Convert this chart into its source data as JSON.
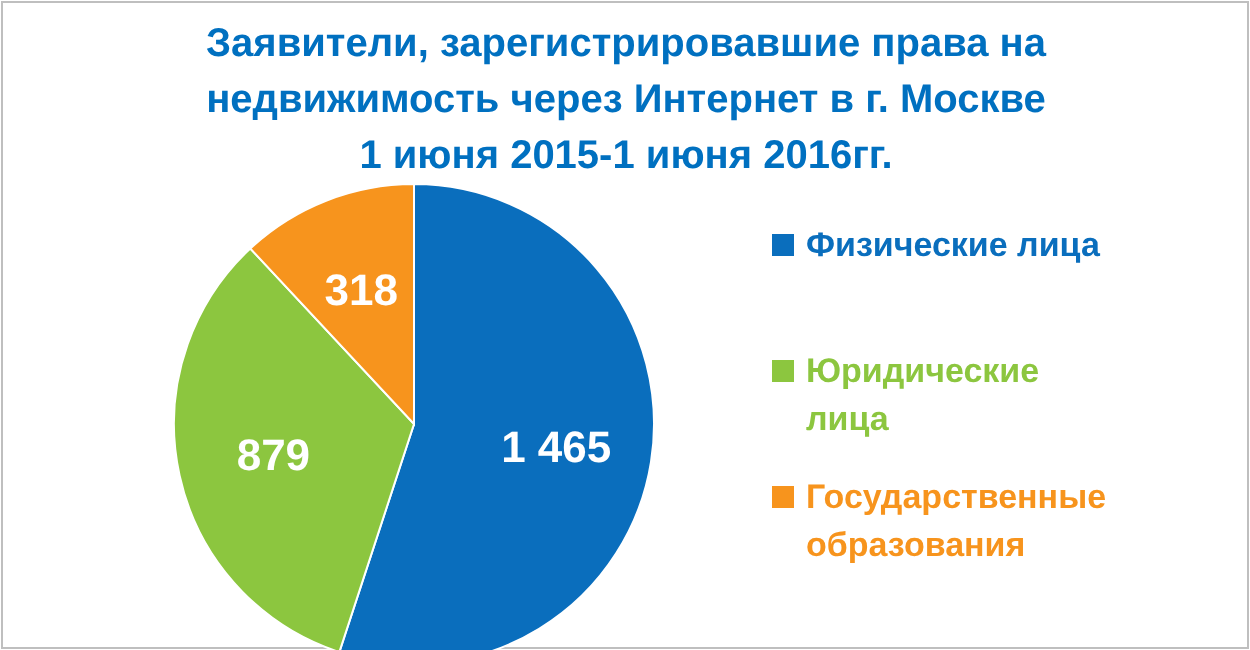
{
  "chart_data": {
    "type": "pie",
    "title": "Заявители, зарегистрировавшие права на недвижимость через Интернет в г. Москве 1 июня 2015-1 июня 2016гг.",
    "categories": [
      "Физические лица",
      "Юридические лица",
      "Государственные образования"
    ],
    "values": [
      1465,
      879,
      318
    ],
    "value_labels": [
      "1 465",
      "879",
      "318"
    ],
    "colors": [
      "#0a6ebd",
      "#8cc63f",
      "#f7941d"
    ],
    "legend": "right"
  }
}
